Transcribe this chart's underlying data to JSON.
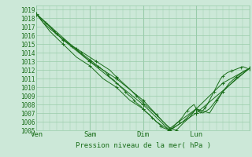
{
  "title": "",
  "xlabel": "Pression niveau de la mer( hPa )",
  "ylabel": "",
  "ylim": [
    1005,
    1019.5
  ],
  "xlim": [
    0,
    96
  ],
  "day_ticks": [
    0,
    24,
    48,
    72,
    96
  ],
  "day_labels": [
    "Ven",
    "Sam",
    "Dim",
    "Lun",
    ""
  ],
  "bg_color": "#cce8d8",
  "grid_color": "#99ccaa",
  "line_color": "#1a6e1a",
  "line_width": 0.7,
  "yticks": [
    1005,
    1006,
    1007,
    1008,
    1009,
    1010,
    1011,
    1012,
    1013,
    1014,
    1015,
    1016,
    1017,
    1018,
    1019
  ],
  "series": [
    {
      "x": [
        0,
        1,
        2,
        3,
        4,
        5,
        6,
        7,
        8,
        9,
        10,
        11,
        12,
        13,
        14,
        15,
        16,
        17,
        18,
        19,
        20,
        21,
        22,
        23,
        24,
        25,
        26,
        27,
        28,
        29,
        30,
        31,
        32,
        33,
        34,
        35,
        36,
        37,
        38,
        39,
        40,
        41,
        42,
        43,
        44,
        45,
        46,
        47,
        48,
        49,
        50,
        51,
        52,
        53,
        54,
        55,
        56,
        57,
        58,
        59,
        60,
        61,
        62,
        63,
        64,
        65,
        66,
        67,
        68,
        69,
        70,
        71,
        72,
        73,
        74,
        75,
        76,
        77,
        78,
        79,
        80,
        81,
        82,
        83,
        84,
        85,
        86,
        87,
        88,
        89,
        90,
        91,
        92,
        93,
        94,
        95
      ],
      "y": [
        1018.5,
        1018.3,
        1018.0,
        1017.8,
        1017.5,
        1017.3,
        1017.1,
        1016.8,
        1016.5,
        1016.2,
        1016.0,
        1015.8,
        1015.6,
        1015.4,
        1015.2,
        1015.0,
        1014.8,
        1014.6,
        1014.4,
        1014.2,
        1014.0,
        1013.8,
        1013.6,
        1013.4,
        1013.2,
        1013.0,
        1012.8,
        1012.6,
        1012.4,
        1012.2,
        1012.0,
        1011.8,
        1011.5,
        1011.2,
        1011.0,
        1010.8,
        1010.5,
        1010.3,
        1010.0,
        1009.8,
        1009.5,
        1009.2,
        1009.0,
        1008.8,
        1008.5,
        1008.2,
        1008.0,
        1007.8,
        1007.5,
        1007.2,
        1007.0,
        1006.8,
        1006.5,
        1006.3,
        1006.0,
        1005.8,
        1005.5,
        1005.3,
        1005.2,
        1005.1,
        1005.0,
        1005.2,
        1005.5,
        1005.8,
        1006.0,
        1006.3,
        1006.6,
        1007.0,
        1007.3,
        1007.6,
        1007.8,
        1008.0,
        1007.5,
        1007.2,
        1007.0,
        1007.3,
        1007.6,
        1008.0,
        1008.5,
        1009.0,
        1009.5,
        1010.0,
        1010.5,
        1011.0,
        1011.3,
        1011.5,
        1011.7,
        1011.8,
        1011.9,
        1012.0,
        1012.1,
        1012.2,
        1012.3,
        1012.4,
        1012.3,
        1012.2
      ]
    },
    {
      "x": [
        0,
        3,
        6,
        9,
        12,
        15,
        18,
        21,
        24,
        27,
        30,
        33,
        36,
        39,
        42,
        45,
        48,
        51,
        54,
        57,
        60,
        63,
        66,
        69,
        72,
        75,
        78,
        81,
        84,
        87,
        90,
        93,
        96
      ],
      "y": [
        1018.5,
        1017.5,
        1016.8,
        1016.2,
        1015.5,
        1015.0,
        1014.5,
        1014.0,
        1013.5,
        1013.0,
        1012.5,
        1012.0,
        1011.2,
        1010.5,
        1009.8,
        1009.0,
        1008.2,
        1007.5,
        1006.8,
        1006.0,
        1005.3,
        1005.0,
        1005.8,
        1006.5,
        1007.5,
        1007.0,
        1007.5,
        1008.5,
        1009.5,
        1010.5,
        1011.2,
        1011.8,
        1012.2
      ]
    },
    {
      "x": [
        0,
        6,
        12,
        18,
        24,
        30,
        36,
        42,
        48,
        54,
        60,
        66,
        72,
        78,
        84,
        90,
        96
      ],
      "y": [
        1018.5,
        1016.5,
        1015.0,
        1013.5,
        1012.5,
        1011.0,
        1010.0,
        1008.5,
        1007.5,
        1006.0,
        1005.0,
        1006.0,
        1007.5,
        1007.0,
        1009.5,
        1011.0,
        1012.2
      ]
    },
    {
      "x": [
        0,
        12,
        24,
        36,
        48,
        60,
        72,
        84,
        96
      ],
      "y": [
        1018.5,
        1015.5,
        1013.0,
        1011.0,
        1008.5,
        1005.2,
        1007.5,
        1010.5,
        1012.2
      ]
    },
    {
      "x": [
        0,
        24,
        48,
        60,
        72,
        96
      ],
      "y": [
        1018.5,
        1013.0,
        1008.0,
        1005.0,
        1007.0,
        1012.2
      ]
    }
  ]
}
